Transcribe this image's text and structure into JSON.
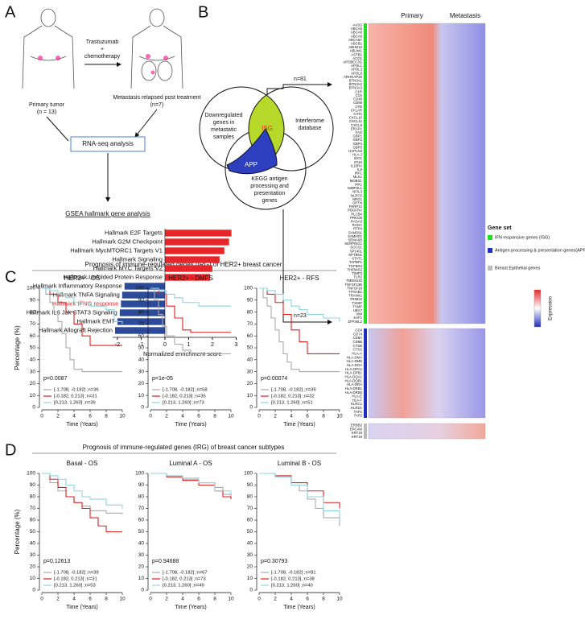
{
  "panel_labels": [
    "A",
    "B",
    "C",
    "D"
  ],
  "panel_a": {
    "treatment": [
      "Trastuzumab",
      "+",
      "chemotherapy"
    ],
    "primary": [
      "Primary tumor",
      "(n = 13)"
    ],
    "metastasis": [
      "Metastasis relapsed post treatment",
      "(n=7)"
    ],
    "rnaseq": "RNA-seq analysis",
    "gsea": "GSEA hallmark gene analysis"
  },
  "panel_b": {
    "venn": {
      "downregulated": [
        "Downregulated",
        "genes in",
        "metastatic",
        "samples"
      ],
      "interferome": [
        "Interferome",
        "database"
      ],
      "kegg": [
        "KEGG antigen",
        "processing and",
        "presentation",
        "genes"
      ],
      "isg": "ISG",
      "app": "APP",
      "n_isg": "n=81",
      "n_app": "n=23"
    },
    "heatmap": {
      "columns": [
        "Primary",
        "Metastasis"
      ],
      "gene_groups": [
        {
          "name": "IFN responsive genes (ISG)",
          "color": "#22dd22",
          "genes": [
            "AASS",
            "ABCA6",
            "ABCA8",
            "ABCA9",
            "ABCA8A",
            "ABCB1",
            "ABHD15",
            "ABLIM1",
            "ASTB1",
            "ACO1",
            "APOBEC3G",
            "APOL1",
            "APOL3",
            "APOL6",
            "ARHGAP25",
            "BTN3A1",
            "BTN3A2",
            "BTN3A3",
            "C1R",
            "C1S",
            "CD48",
            "CD69",
            "CFB",
            "CFLAR",
            "CIITA",
            "CXCL10",
            "CXCL11",
            "CXCL9",
            "ERAP1",
            "FAS",
            "GBP1",
            "GBP2",
            "GBP4",
            "GBP5",
            "HAPLN3",
            "HLA-J",
            "IDO1",
            "IFI16",
            "IL15RA",
            "IL6",
            "IRF1",
            "MLKL",
            "MOB3C",
            "MX1",
            "N4BP2L1",
            "NFIL3",
            "NLRC5",
            "NRG1",
            "OPTN",
            "PARP12",
            "PDGFRA",
            "PLCB4",
            "PRKCB",
            "RASA3",
            "RHOA",
            "RTP4",
            "SAMD9L",
            "SAMHD1",
            "SEMA6B",
            "SERPING1",
            "SOCS1",
            "SP140L",
            "SPTBN1",
            "STAT1",
            "TAPBPL",
            "TGFBR3",
            "THEMIS2",
            "TIMP3",
            "TLR2",
            "TMEM140",
            "TNFSF13B",
            "TNFSF18",
            "TPSAB1",
            "TRANK1",
            "TRIM22",
            "TXNIP",
            "TYMP",
            "UBA7",
            "VIM",
            "XAF1",
            "ZFP36L2"
          ]
        },
        {
          "name": "Antigen processing & presentation genes(APP)",
          "color": "#1f2fbf",
          "genes": [
            "CD4",
            "CD74",
            "CD8A",
            "CD8B",
            "CTSB",
            "CTSS",
            "HLA-A",
            "HLA-DMA",
            "HLA-DMB",
            "HLA-DOA",
            "HLA-DPA1",
            "HLA-DPB1",
            "HLA-DQA1",
            "HLA-DQB1",
            "HLA-DRA",
            "HLA-DRB1",
            "HLA-DRB5",
            "HLA-E",
            "HLA-F",
            "KLRC1",
            "KLRD1",
            "TAP1",
            "TAP2"
          ]
        },
        {
          "name": "Breast Epithelial genes",
          "color": "#bbbbbb",
          "genes": [
            "ERBB2",
            "EPCAM",
            "KRT18",
            "KRT19"
          ]
        }
      ],
      "legend_title": "Gene set",
      "expression_label": "Expression"
    }
  },
  "panel_c_title": "Prognosis of  immune-regulated genes (IRG) of HER2+ breast cancer",
  "panel_d_title": "Prognosis of  immune-regulated genes (IRG) of breast cancer subtypes",
  "chart_data": [
    {
      "type": "barh",
      "xlabel": "Normalized enrichment score",
      "categories": [
        "Hallmark E2F Targets",
        "Hallmark G2M Checkpoint",
        "Hallmark MycMTORC1 Targets V1",
        "Hallmark Signaling",
        "Hallmark MYC Targets V2",
        "Hallmark Unfolded Protein Response",
        "Hallmark Inflammatory Response",
        "Hallmark TNFA Signaling",
        "Hallmark IFNG response",
        "Hallmark IL6 Jak STAT3 Signaling",
        "Hallmark EMT",
        "Hallmark Allograft Rejection"
      ],
      "values": [
        2.8,
        2.7,
        2.5,
        2.3,
        2.0,
        1.9,
        -1.7,
        -1.8,
        -1.85,
        -1.9,
        -2.0,
        -2.1
      ],
      "colors": [
        "#e8262a",
        "#e8262a",
        "#e8262a",
        "#e8262a",
        "#e8262a",
        "#e8262a",
        "#2c4a9a",
        "#2c4a9a",
        "#2c4a9a",
        "#2c4a9a",
        "#2c4a9a",
        "#2c4a9a"
      ],
      "highlight_index": 8,
      "highlight_color": "#e8262a",
      "xlim": [
        -2.2,
        3
      ],
      "xticks": [
        -2,
        -1,
        0,
        1,
        2,
        3
      ]
    },
    {
      "type": "step",
      "title": "HER2+ - OS",
      "xlabel": "Time (Years)",
      "ylabel": "Percentage (%)",
      "annotation": "p=0.0087",
      "xlim": [
        0,
        10
      ],
      "xticks": [
        0,
        2,
        4,
        6,
        8,
        10
      ],
      "ylim": [
        0,
        100
      ],
      "yticks": [
        0,
        10,
        20,
        30,
        40,
        50,
        60,
        70,
        80,
        90,
        100
      ],
      "series": [
        {
          "name": "[-1.708, -0.182] ;n=36",
          "color": "#aaaaaa",
          "x": [
            0,
            0.5,
            1,
            1.5,
            2,
            2.5,
            3,
            3.5,
            4,
            5,
            10
          ],
          "values": [
            100,
            95,
            88,
            80,
            72,
            62,
            50,
            40,
            32,
            30,
            30
          ]
        },
        {
          "name": "[-0.182, 0.213] ;n=31",
          "color": "#e02020",
          "x": [
            0,
            1,
            2,
            3,
            4,
            5,
            6,
            10
          ],
          "values": [
            100,
            95,
            88,
            80,
            70,
            60,
            52,
            52
          ]
        },
        {
          "name": "[0.213, 1.260] ;n=36",
          "color": "#8fd3e0",
          "x": [
            0,
            1,
            2,
            3,
            4,
            6,
            8,
            9,
            10
          ],
          "values": [
            100,
            98,
            95,
            92,
            88,
            85,
            82,
            72,
            70
          ]
        }
      ]
    },
    {
      "type": "step",
      "title": "HER2+ - DMFS",
      "xlabel": "Time (Years)",
      "annotation": "p=1e-05",
      "xlim": [
        0,
        10
      ],
      "xticks": [
        0,
        2,
        4,
        6,
        8,
        10
      ],
      "ylim": [
        0,
        100
      ],
      "yticks": [
        0,
        10,
        20,
        30,
        40,
        50,
        60,
        70,
        80,
        90,
        100
      ],
      "series": [
        {
          "name": "[-1.708, -0.182] ;n=58",
          "color": "#aaaaaa",
          "x": [
            0,
            0.5,
            1,
            1.5,
            2,
            3,
            4,
            5,
            6,
            8,
            10
          ],
          "values": [
            100,
            90,
            78,
            68,
            60,
            53,
            48,
            45,
            45,
            45,
            45
          ]
        },
        {
          "name": "[-0.182, 0.213] ;n=35",
          "color": "#e02020",
          "x": [
            0,
            1,
            2,
            3,
            4,
            5,
            10
          ],
          "values": [
            100,
            95,
            85,
            75,
            65,
            63,
            63
          ]
        },
        {
          "name": "[0.213, 1.260] ;n=73",
          "color": "#8fd3e0",
          "x": [
            0,
            1,
            2,
            3,
            4,
            6,
            10
          ],
          "values": [
            100,
            98,
            95,
            92,
            88,
            85,
            85
          ]
        }
      ]
    },
    {
      "type": "step",
      "title": "HER2+ - RFS",
      "xlabel": "Time (Years)",
      "annotation": "p=0.00074",
      "xlim": [
        0,
        10
      ],
      "xticks": [
        0,
        2,
        4,
        6,
        8,
        10
      ],
      "ylim": [
        0,
        100
      ],
      "yticks": [
        0,
        10,
        20,
        30,
        40,
        50,
        60,
        70,
        80,
        90,
        100
      ],
      "series": [
        {
          "name": "[-1.708, -0.182] ;n=39",
          "color": "#aaaaaa",
          "x": [
            0,
            0.5,
            1,
            1.5,
            2,
            2.5,
            3,
            3.5,
            4,
            5,
            10
          ],
          "values": [
            100,
            92,
            85,
            75,
            65,
            55,
            45,
            38,
            32,
            30,
            30
          ]
        },
        {
          "name": "[-0.182, 0.213] ;n=32",
          "color": "#e02020",
          "x": [
            0,
            1,
            2,
            3,
            4,
            5,
            6,
            10
          ],
          "values": [
            100,
            95,
            88,
            78,
            65,
            55,
            45,
            45
          ]
        },
        {
          "name": "[0.213, 1.260] ;n=51",
          "color": "#8fd3e0",
          "x": [
            0,
            1,
            2,
            3,
            4,
            5,
            6,
            8,
            10
          ],
          "values": [
            100,
            98,
            95,
            90,
            85,
            82,
            78,
            75,
            72
          ]
        }
      ]
    },
    {
      "type": "step",
      "title": "Basal - OS",
      "xlabel": "Time (Years)",
      "ylabel": "Percentage (%)",
      "annotation": "p=0.12613",
      "xlim": [
        0,
        10
      ],
      "xticks": [
        0,
        2,
        4,
        6,
        8,
        10
      ],
      "ylim": [
        0,
        100
      ],
      "yticks": [
        0,
        10,
        20,
        30,
        40,
        50,
        60,
        70,
        80,
        90,
        100
      ],
      "series": [
        {
          "name": "[-1.708, -0.182] ;n=39",
          "color": "#aaaaaa",
          "x": [
            0,
            1,
            2,
            3,
            4,
            5,
            6,
            8,
            10
          ],
          "values": [
            100,
            92,
            85,
            80,
            75,
            72,
            68,
            66,
            65
          ]
        },
        {
          "name": "[-0.182, 0.213] ;n=31",
          "color": "#e02020",
          "x": [
            0,
            1,
            2,
            3,
            4,
            5,
            6,
            7,
            8,
            10
          ],
          "values": [
            100,
            95,
            88,
            80,
            75,
            70,
            62,
            55,
            50,
            50
          ]
        },
        {
          "name": "[0.213, 1.260] ;n=53",
          "color": "#8fd3e0",
          "x": [
            0,
            1,
            2,
            3,
            4,
            5,
            6,
            8,
            10
          ],
          "values": [
            100,
            98,
            95,
            90,
            85,
            80,
            78,
            73,
            70
          ]
        }
      ]
    },
    {
      "type": "step",
      "title": "Luminal A - OS",
      "xlabel": "Time (Years)",
      "annotation": "p=0.94688",
      "xlim": [
        0,
        10
      ],
      "xticks": [
        0,
        2,
        4,
        6,
        8,
        10
      ],
      "ylim": [
        0,
        100
      ],
      "yticks": [
        0,
        10,
        20,
        30,
        40,
        50,
        60,
        70,
        80,
        90,
        100
      ],
      "series": [
        {
          "name": "[-1.708, -0.182] ;n=67",
          "color": "#aaaaaa",
          "x": [
            0,
            2,
            4,
            6,
            8,
            9,
            10
          ],
          "values": [
            100,
            98,
            95,
            92,
            88,
            82,
            78
          ]
        },
        {
          "name": "[-0.182, 0.213] ;n=73",
          "color": "#e02020",
          "x": [
            0,
            2,
            4,
            6,
            8,
            9,
            10
          ],
          "values": [
            100,
            97,
            94,
            90,
            85,
            80,
            78
          ]
        },
        {
          "name": "[0.213, 1.260] ;n=49",
          "color": "#8fd3e0",
          "x": [
            0,
            2,
            4,
            6,
            8,
            10
          ],
          "values": [
            100,
            98,
            96,
            92,
            85,
            82
          ]
        }
      ]
    },
    {
      "type": "step",
      "title": "Luminal B - OS",
      "xlabel": "Time (Years)",
      "annotation": "p=0.30793",
      "xlim": [
        0,
        10
      ],
      "xticks": [
        0,
        2,
        4,
        6,
        8,
        10
      ],
      "ylim": [
        0,
        100
      ],
      "yticks": [
        0,
        10,
        20,
        30,
        40,
        50,
        60,
        70,
        80,
        90,
        100
      ],
      "series": [
        {
          "name": "[-1.708, -0.182] ;n=81",
          "color": "#aaaaaa",
          "x": [
            0,
            2,
            4,
            5,
            6,
            7,
            8,
            10
          ],
          "values": [
            100,
            98,
            90,
            85,
            78,
            70,
            62,
            55
          ]
        },
        {
          "name": "[-0.182, 0.213] ;n=38",
          "color": "#e02020",
          "x": [
            0,
            2,
            4,
            6,
            8,
            10
          ],
          "values": [
            100,
            98,
            92,
            85,
            75,
            70
          ]
        },
        {
          "name": "[0.213, 1.260] ;n=40",
          "color": "#8fd3e0",
          "x": [
            0,
            2,
            4,
            6,
            8,
            10
          ],
          "values": [
            100,
            97,
            90,
            80,
            68,
            60
          ]
        }
      ]
    }
  ]
}
